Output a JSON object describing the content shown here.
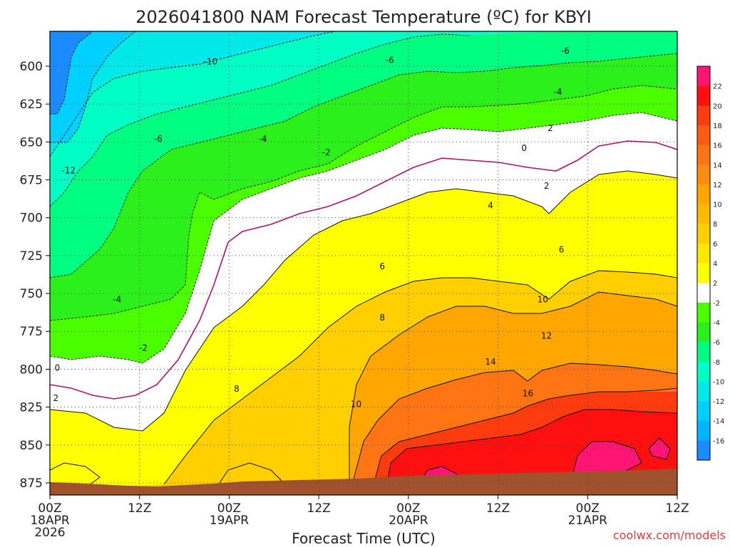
{
  "chart_data": {
    "type": "heatmap",
    "title": "2026041800 NAM Forecast Temperature (ºC) for KBYI",
    "xlabel": "Forecast Time (UTC)",
    "ylabel": "",
    "x_ticks": [
      {
        "hour": 0,
        "line1": "00Z",
        "line2": "18APR",
        "line3": "2026"
      },
      {
        "hour": 12,
        "line1": "12Z",
        "line2": "",
        "line3": ""
      },
      {
        "hour": 24,
        "line1": "00Z",
        "line2": "19APR",
        "line3": ""
      },
      {
        "hour": 36,
        "line1": "12Z",
        "line2": "",
        "line3": ""
      },
      {
        "hour": 48,
        "line1": "00Z",
        "line2": "20APR",
        "line3": ""
      },
      {
        "hour": 60,
        "line1": "12Z",
        "line2": "",
        "line3": ""
      },
      {
        "hour": 72,
        "line1": "00Z",
        "line2": "21APR",
        "line3": ""
      },
      {
        "hour": 84,
        "line1": "12Z",
        "line2": "",
        "line3": ""
      }
    ],
    "xlim": [
      0,
      84
    ],
    "y_ticks": [
      600,
      625,
      650,
      675,
      700,
      725,
      750,
      775,
      800,
      825,
      850,
      875
    ],
    "ylim": [
      577,
      883
    ],
    "colorbar_levels": [
      22,
      20,
      18,
      16,
      14,
      12,
      10,
      8,
      6,
      4,
      2,
      -2,
      -4,
      -6,
      -8,
      -10,
      -12,
      -14,
      -16
    ],
    "colorbar_colors": [
      "#ff1675",
      "#ff1010",
      "#ff3c10",
      "#ff5a14",
      "#ff7514",
      "#ff8c10",
      "#ffa600",
      "#ffba00",
      "#ffcf00",
      "#ffe800",
      "#ffff00",
      "#ffffff",
      "#4cff00",
      "#2cf01c",
      "#00ff80",
      "#00ffc4",
      "#00e9e9",
      "#00d0ff",
      "#00b4ff",
      "#1a8cff"
    ],
    "contour_labels": [
      {
        "t": 21.5,
        "p": 597,
        "text": "-10"
      },
      {
        "t": 45.5,
        "p": 596,
        "text": "-6"
      },
      {
        "t": 69,
        "p": 590,
        "text": "-6"
      },
      {
        "t": 68,
        "p": 617,
        "text": "-4"
      },
      {
        "t": 67,
        "p": 641,
        "text": "2"
      },
      {
        "t": 63.5,
        "p": 654,
        "text": "0"
      },
      {
        "t": 66.5,
        "p": 679,
        "text": "2"
      },
      {
        "t": 14.5,
        "p": 648,
        "text": "-6"
      },
      {
        "t": 28.5,
        "p": 648,
        "text": "-4"
      },
      {
        "t": 37,
        "p": 657,
        "text": "-2"
      },
      {
        "t": 2.5,
        "p": 669,
        "text": "-12"
      },
      {
        "t": 59,
        "p": 692,
        "text": "4"
      },
      {
        "t": 68.5,
        "p": 721,
        "text": "6"
      },
      {
        "t": 9,
        "p": 754,
        "text": "-4"
      },
      {
        "t": 44.5,
        "p": 732,
        "text": "6"
      },
      {
        "t": 66,
        "p": 754,
        "text": "10"
      },
      {
        "t": 44.5,
        "p": 766,
        "text": "8"
      },
      {
        "t": 66.5,
        "p": 778,
        "text": "12"
      },
      {
        "t": 12.5,
        "p": 786,
        "text": "-2"
      },
      {
        "t": 59,
        "p": 795,
        "text": "14"
      },
      {
        "t": 1,
        "p": 799,
        "text": "0"
      },
      {
        "t": 25,
        "p": 813,
        "text": "8"
      },
      {
        "t": 64,
        "p": 816,
        "text": "16"
      },
      {
        "t": 0.8,
        "p": 819,
        "text": "2"
      },
      {
        "t": 41,
        "p": 823,
        "text": "10"
      }
    ],
    "credit": "coolwx.com/models"
  }
}
